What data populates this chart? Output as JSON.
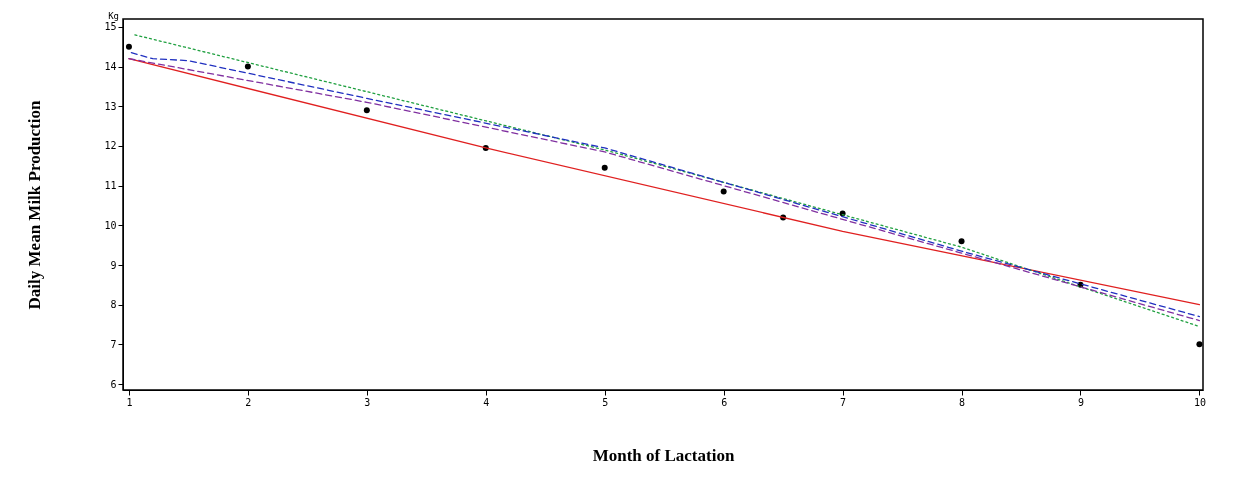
{
  "chart_data": {
    "type": "line",
    "xlabel": "Month of Lactation",
    "ylabel": "Daily Mean Milk Production",
    "annotations": [
      "Kg"
    ],
    "xlim": [
      0.95,
      10.03
    ],
    "ylim": [
      5.85,
      15.2
    ],
    "xticks": [
      1,
      2,
      3,
      4,
      5,
      6,
      7,
      8,
      9,
      10
    ],
    "yticks": [
      6,
      7,
      8,
      9,
      10,
      11,
      12,
      13,
      14,
      15
    ],
    "grid": false,
    "series": [
      {
        "type": "scatter",
        "color": "#000000",
        "marker": "circle",
        "x": [
          1,
          2,
          3,
          4,
          5,
          6,
          6.5,
          7,
          8,
          9,
          10
        ],
        "values": [
          14.5,
          14.0,
          12.9,
          11.95,
          11.45,
          10.85,
          10.2,
          10.3,
          9.6,
          8.5,
          7.0
        ]
      },
      {
        "color": "#e02020",
        "line_style": "solid",
        "x": [
          1,
          4,
          7,
          10
        ],
        "values": [
          14.2,
          11.95,
          9.85,
          8.0
        ]
      },
      {
        "color": "#20a040",
        "line_style": "dotted",
        "x": [
          1.05,
          5,
          8,
          10
        ],
        "values": [
          14.8,
          11.9,
          9.45,
          7.45
        ]
      },
      {
        "color": "#2030c0",
        "line_style": "dashed",
        "x": [
          1.02,
          1.2,
          1.5,
          3,
          5,
          8,
          10
        ],
        "values": [
          14.35,
          14.2,
          14.15,
          13.2,
          11.95,
          9.35,
          7.7
        ]
      },
      {
        "color": "#8030a0",
        "line_style": "dashed",
        "x": [
          1,
          3,
          5,
          8,
          10
        ],
        "values": [
          14.2,
          13.1,
          11.85,
          9.3,
          7.6
        ]
      }
    ]
  }
}
